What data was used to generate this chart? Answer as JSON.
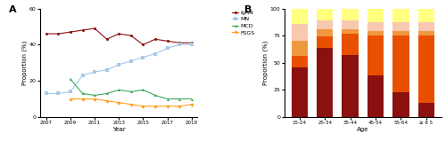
{
  "line_years": [
    2007,
    2008,
    2009,
    2010,
    2011,
    2012,
    2013,
    2014,
    2015,
    2016,
    2017,
    2018,
    2019
  ],
  "IgAN": [
    46,
    46,
    47,
    48,
    49,
    43,
    46,
    45,
    40,
    43,
    42,
    41,
    41
  ],
  "MN": [
    13,
    13,
    14,
    23,
    25,
    26,
    29,
    31,
    33,
    35,
    38,
    40,
    40
  ],
  "MCD": [
    null,
    null,
    21,
    13,
    12,
    13,
    15,
    14,
    15,
    12,
    10,
    10,
    10
  ],
  "FSGS": [
    null,
    null,
    10,
    10,
    10,
    9,
    8,
    7,
    6,
    6,
    6,
    6,
    7
  ],
  "bar_ages": [
    "15-24",
    "25-34",
    "35-44",
    "45-54",
    "55-64",
    "≥ 6 5"
  ],
  "bar_IgAN": [
    46,
    64,
    57,
    38,
    23,
    13
  ],
  "bar_MN": [
    10,
    10,
    20,
    37,
    52,
    62
  ],
  "bar_MCD": [
    14,
    7,
    4,
    4,
    4,
    4
  ],
  "bar_FSGS": [
    16,
    8,
    8,
    8,
    8,
    8
  ],
  "bar_Others": [
    14,
    11,
    11,
    13,
    13,
    13
  ],
  "line_colors": {
    "IgAN": "#8B1010",
    "MN": "#A8C8E8",
    "MCD": "#3DAA5C",
    "FSGS": "#FFA020"
  },
  "bar_colors": {
    "IgAN": "#8B1010",
    "MN": "#E85000",
    "MCD": "#F09840",
    "FSGS": "#F8C8B0",
    "Others": "#FFFF80"
  },
  "ylim_line": [
    0,
    60
  ],
  "yticks_line": [
    0,
    20,
    40,
    60
  ],
  "ylim_bar": [
    0,
    100
  ],
  "yticks_bar": [
    0,
    25,
    50,
    75,
    100
  ]
}
